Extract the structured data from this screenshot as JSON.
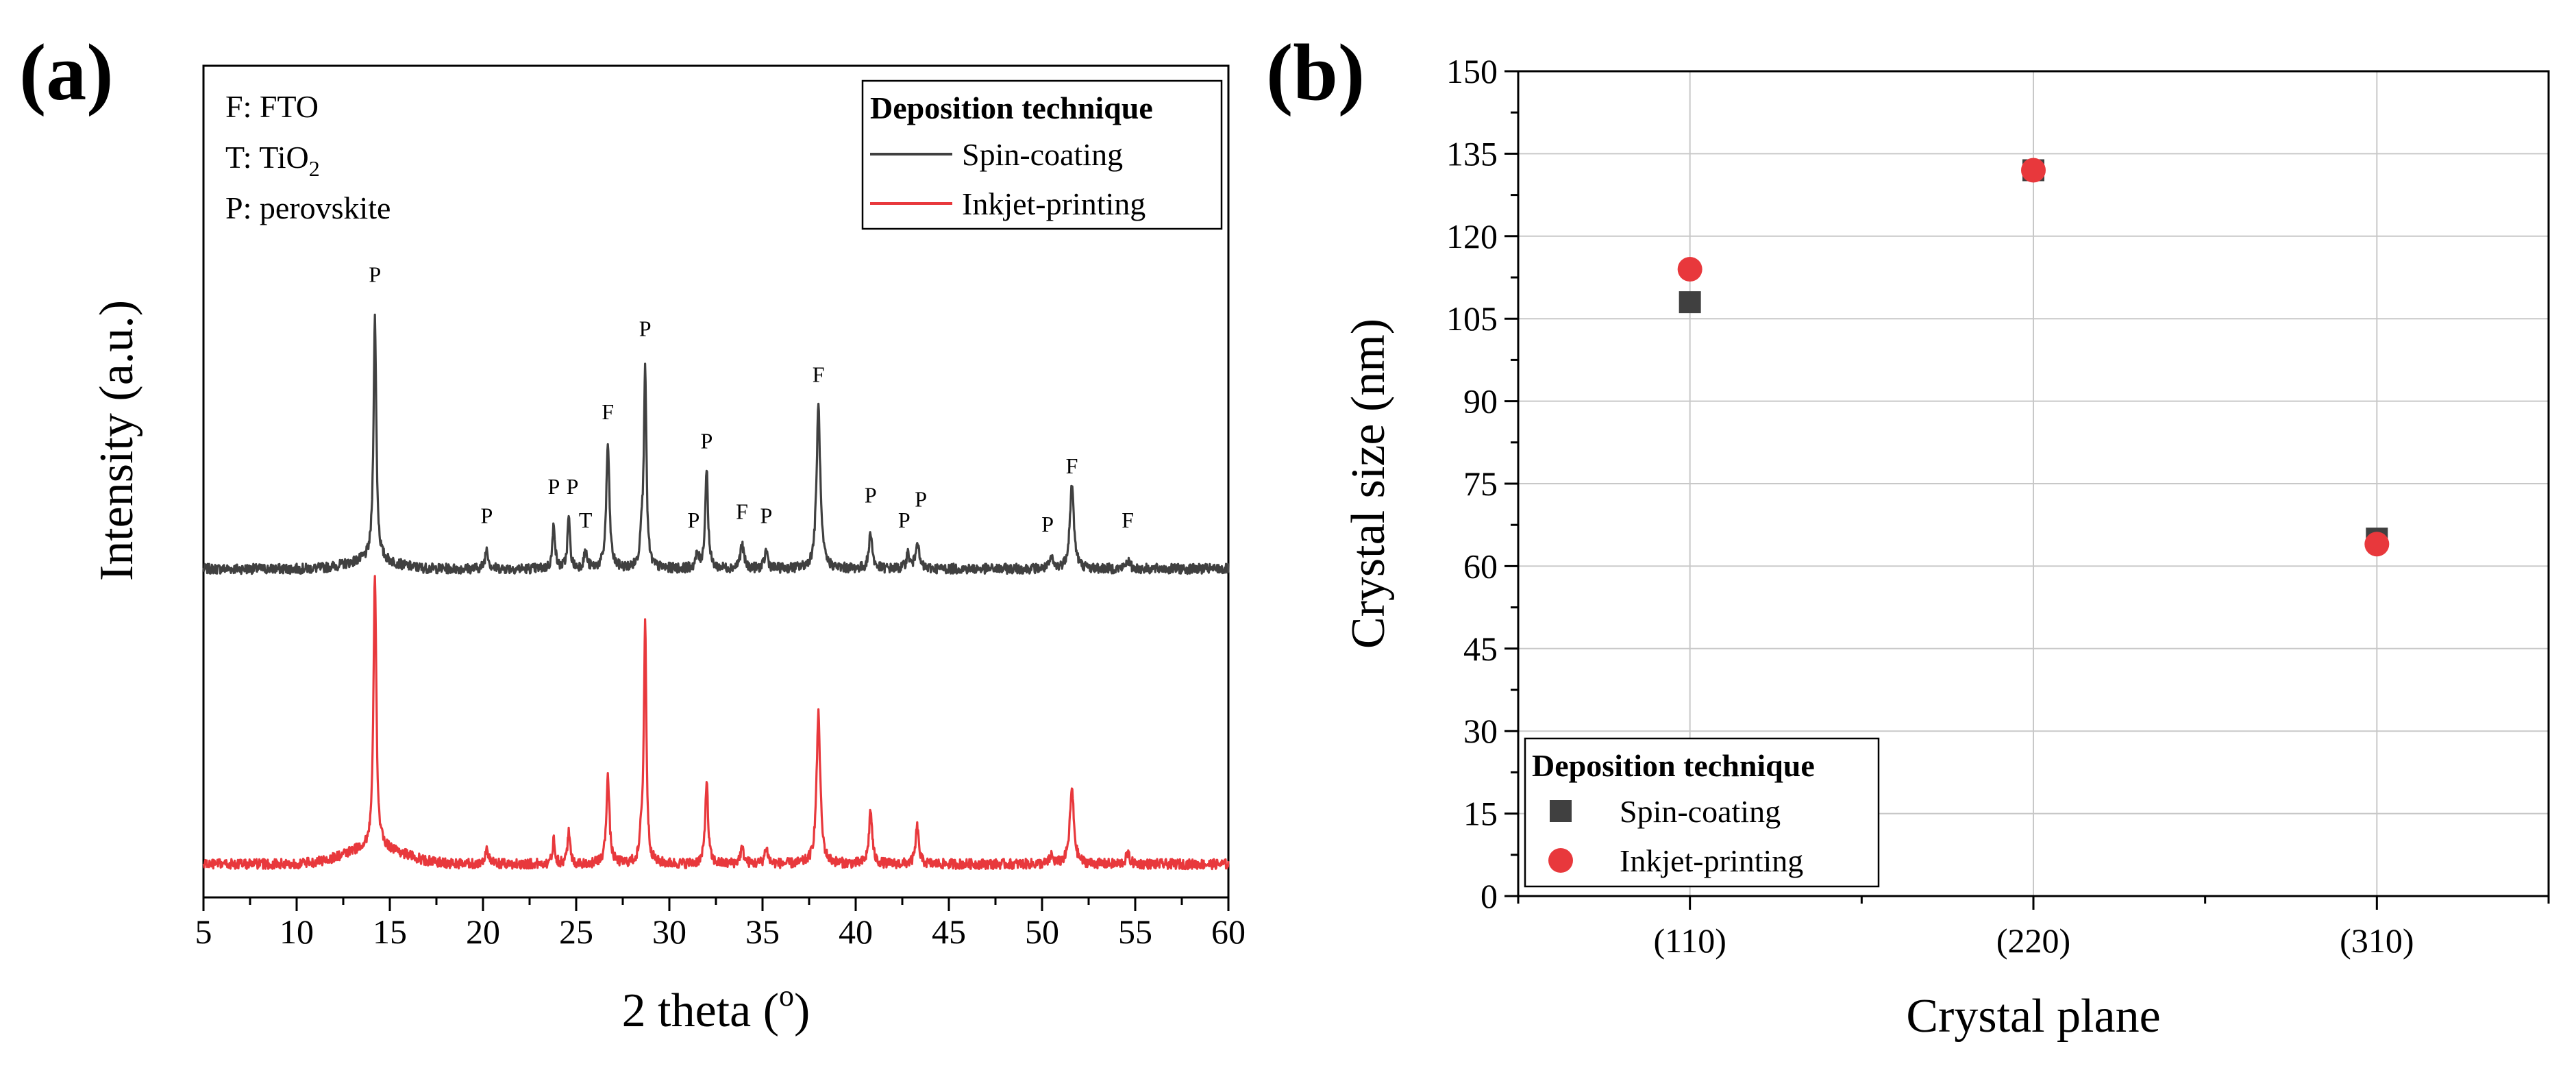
{
  "colors": {
    "spin": "#404040",
    "inkjet": "#e8383c",
    "axis": "#000000",
    "grid": "#c8c8c8"
  },
  "chart_data": [
    {
      "panel_label": "(a)",
      "type": "line",
      "xlabel": "2 theta (",
      "xlabel_sup": "o",
      "xlabel_end": ")",
      "ylabel": "Intensity (a.u.)",
      "xlim": [
        5,
        60
      ],
      "xticks": [
        5,
        10,
        15,
        20,
        25,
        30,
        35,
        40,
        45,
        50,
        55,
        60
      ],
      "xtick_labels": [
        "5",
        "10",
        "15",
        "20",
        "25",
        "30",
        "35",
        "40",
        "45",
        "50",
        "55",
        "60"
      ],
      "ylim": [
        0,
        1
      ],
      "key": [
        {
          "text": "F: FTO"
        },
        {
          "text": "T: TiO",
          "sub": "2"
        },
        {
          "text": "P: perovskite"
        }
      ],
      "legend": {
        "title": "Deposition technique",
        "location": "top-right",
        "entries": [
          {
            "name": "Spin-coating",
            "color": "#404040"
          },
          {
            "name": "Inkjet-printing",
            "color": "#e8383c"
          }
        ]
      },
      "series": [
        {
          "name": "Spin-coating",
          "color": "#404040",
          "baseline": 0.395,
          "noise": 0.006,
          "hump": {
            "center": 14.0,
            "width": 1.8,
            "height": 0.01
          },
          "peaks": [
            {
              "x": 14.2,
              "h": 0.292,
              "w": 0.09
            },
            {
              "x": 20.2,
              "h": 0.025,
              "w": 0.1
            },
            {
              "x": 23.8,
              "h": 0.055,
              "w": 0.08
            },
            {
              "x": 24.6,
              "h": 0.062,
              "w": 0.08
            },
            {
              "x": 25.5,
              "h": 0.02,
              "w": 0.1
            },
            {
              "x": 26.7,
              "h": 0.15,
              "w": 0.1
            },
            {
              "x": 28.5,
              "h": 0.04,
              "w": 0.08
            },
            {
              "x": 28.7,
              "h": 0.245,
              "w": 0.08
            },
            {
              "x": 31.5,
              "h": 0.016,
              "w": 0.1
            },
            {
              "x": 32.0,
              "h": 0.12,
              "w": 0.09
            },
            {
              "x": 33.9,
              "h": 0.028,
              "w": 0.12
            },
            {
              "x": 35.2,
              "h": 0.022,
              "w": 0.1
            },
            {
              "x": 38.0,
              "h": 0.195,
              "w": 0.12
            },
            {
              "x": 40.8,
              "h": 0.045,
              "w": 0.1
            },
            {
              "x": 42.8,
              "h": 0.018,
              "w": 0.1
            },
            {
              "x": 43.3,
              "h": 0.035,
              "w": 0.1
            },
            {
              "x": 50.5,
              "h": 0.012,
              "w": 0.1
            },
            {
              "x": 51.6,
              "h": 0.1,
              "w": 0.13
            },
            {
              "x": 54.6,
              "h": 0.01,
              "w": 0.12
            }
          ],
          "peak_labels": [
            {
              "x": 14.2,
              "y": 0.74,
              "text": "P"
            },
            {
              "x": 20.2,
              "y": 0.45,
              "text": "P"
            },
            {
              "x": 23.8,
              "y": 0.485,
              "text": "P"
            },
            {
              "x": 24.8,
              "y": 0.485,
              "text": "P"
            },
            {
              "x": 25.5,
              "y": 0.445,
              "text": "T"
            },
            {
              "x": 26.7,
              "y": 0.575,
              "text": "F"
            },
            {
              "x": 28.7,
              "y": 0.675,
              "text": "P"
            },
            {
              "x": 31.3,
              "y": 0.445,
              "text": "P"
            },
            {
              "x": 32.0,
              "y": 0.54,
              "text": "P"
            },
            {
              "x": 33.9,
              "y": 0.455,
              "text": "F"
            },
            {
              "x": 35.2,
              "y": 0.45,
              "text": "P"
            },
            {
              "x": 38.0,
              "y": 0.62,
              "text": "F"
            },
            {
              "x": 40.8,
              "y": 0.475,
              "text": "P"
            },
            {
              "x": 42.6,
              "y": 0.445,
              "text": "P"
            },
            {
              "x": 43.5,
              "y": 0.47,
              "text": "P"
            },
            {
              "x": 50.3,
              "y": 0.44,
              "text": "P"
            },
            {
              "x": 51.6,
              "y": 0.51,
              "text": "F"
            },
            {
              "x": 54.6,
              "y": 0.445,
              "text": "F"
            }
          ]
        },
        {
          "name": "Inkjet-printing",
          "color": "#e8383c",
          "baseline": 0.04,
          "noise": 0.006,
          "hump": {
            "center": 14.2,
            "width": 2.2,
            "height": 0.02
          },
          "peaks": [
            {
              "x": 14.2,
              "h": 0.33,
              "w": 0.09
            },
            {
              "x": 20.2,
              "h": 0.02,
              "w": 0.1
            },
            {
              "x": 23.8,
              "h": 0.03,
              "w": 0.08
            },
            {
              "x": 24.6,
              "h": 0.04,
              "w": 0.08
            },
            {
              "x": 26.7,
              "h": 0.105,
              "w": 0.1
            },
            {
              "x": 28.5,
              "h": 0.03,
              "w": 0.08
            },
            {
              "x": 28.7,
              "h": 0.29,
              "w": 0.08
            },
            {
              "x": 32.0,
              "h": 0.1,
              "w": 0.09
            },
            {
              "x": 33.9,
              "h": 0.018,
              "w": 0.12
            },
            {
              "x": 35.2,
              "h": 0.02,
              "w": 0.1
            },
            {
              "x": 38.0,
              "h": 0.18,
              "w": 0.12
            },
            {
              "x": 40.8,
              "h": 0.065,
              "w": 0.1
            },
            {
              "x": 43.3,
              "h": 0.045,
              "w": 0.1
            },
            {
              "x": 50.5,
              "h": 0.01,
              "w": 0.1
            },
            {
              "x": 51.6,
              "h": 0.09,
              "w": 0.13
            },
            {
              "x": 54.6,
              "h": 0.012,
              "w": 0.12
            }
          ],
          "peak_labels": []
        }
      ]
    },
    {
      "panel_label": "(b)",
      "type": "scatter",
      "xlabel": "Crystal plane",
      "ylabel": "Crystal size (nm)",
      "categories": [
        "(110)",
        "(220)",
        "(310)"
      ],
      "xlim": [
        0.5,
        3.5
      ],
      "ylim": [
        0,
        150
      ],
      "yticks": [
        0,
        15,
        30,
        45,
        60,
        75,
        90,
        105,
        120,
        135,
        150
      ],
      "ytick_labels": [
        "0",
        "15",
        "30",
        "45",
        "60",
        "75",
        "90",
        "105",
        "120",
        "135",
        "150"
      ],
      "grid": true,
      "legend": {
        "title": "Deposition technique",
        "location": "bottom-left",
        "entries": [
          {
            "name": "Spin-coating",
            "marker": "square",
            "color": "#404040"
          },
          {
            "name": "Inkjet-printing",
            "marker": "circle",
            "color": "#e8383c"
          }
        ]
      },
      "series": [
        {
          "name": "Spin-coating",
          "marker": "square",
          "color": "#404040",
          "values": [
            108,
            132,
            65
          ]
        },
        {
          "name": "Inkjet-printing",
          "marker": "circle",
          "color": "#e8383c",
          "values": [
            114,
            132,
            64
          ]
        }
      ]
    }
  ]
}
